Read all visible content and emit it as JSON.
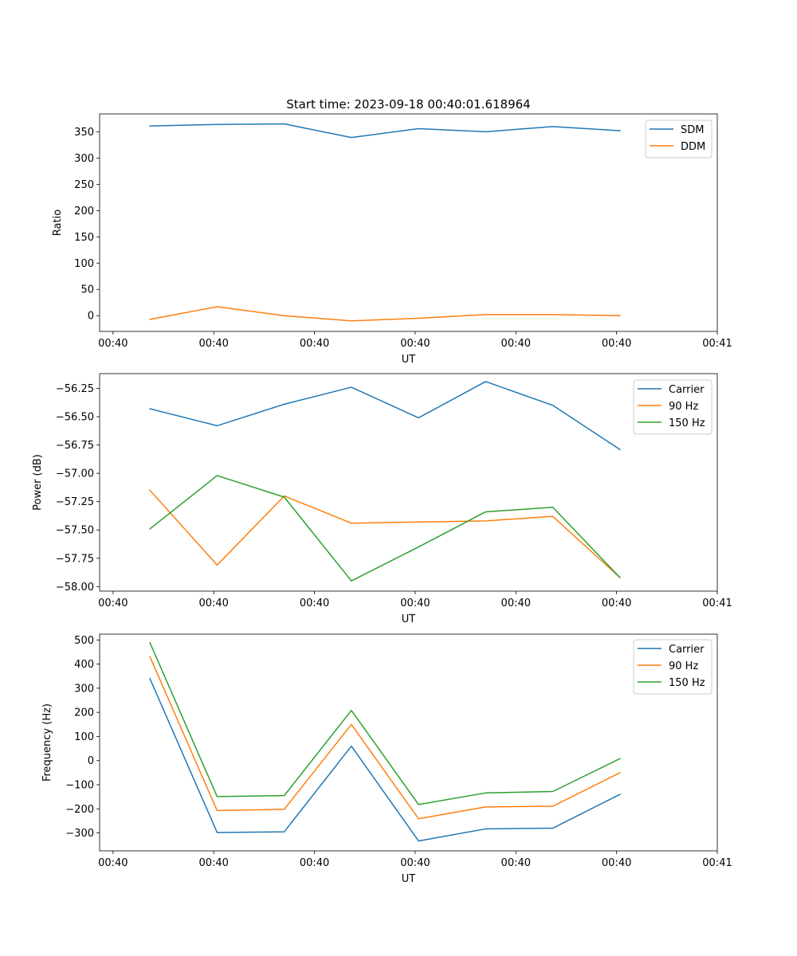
{
  "figure_title": "Start time: 2023-09-18 00:40:01.618964",
  "colors": {
    "blue": "#1f77b4",
    "orange": "#ff7f0e",
    "green": "#2ca02c",
    "axis": "#000000"
  },
  "chart_data": [
    {
      "type": "line",
      "id": "ratio",
      "title": "Start time: 2023-09-18 00:40:01.618964",
      "xlabel": "UT",
      "ylabel": "Ratio",
      "x": [
        1.0,
        2.0,
        3.0,
        4.0,
        5.0,
        6.0,
        7.0,
        8.0
      ],
      "xlim": [
        0.25,
        9.45
      ],
      "x_ticks": [
        0.45,
        1.95,
        3.45,
        4.95,
        6.45,
        7.95,
        9.45
      ],
      "x_tick_labels": [
        "00:40",
        "00:40",
        "00:40",
        "00:40",
        "00:40",
        "00:40",
        "00:41"
      ],
      "ylim": [
        -30,
        384
      ],
      "y_ticks": [
        0,
        50,
        100,
        150,
        200,
        250,
        300,
        350
      ],
      "y_tick_labels": [
        "0",
        "50",
        "100",
        "150",
        "200",
        "250",
        "300",
        "350"
      ],
      "legend": "top-right",
      "series": [
        {
          "name": "SDM",
          "color": "#1f77b4",
          "values": [
            361,
            364,
            365,
            339,
            356,
            350,
            360,
            352
          ]
        },
        {
          "name": "DDM",
          "color": "#ff7f0e",
          "values": [
            -7,
            17,
            0,
            -10,
            -5,
            2,
            2,
            0
          ]
        }
      ]
    },
    {
      "type": "line",
      "id": "power",
      "title": "",
      "xlabel": "UT",
      "ylabel": "Power (dB)",
      "x": [
        1.0,
        2.0,
        3.0,
        4.0,
        5.0,
        6.0,
        7.0,
        8.0
      ],
      "xlim": [
        0.25,
        9.45
      ],
      "x_ticks": [
        0.45,
        1.95,
        3.45,
        4.95,
        6.45,
        7.95,
        9.45
      ],
      "x_tick_labels": [
        "00:40",
        "00:40",
        "00:40",
        "00:40",
        "00:40",
        "00:40",
        "00:41"
      ],
      "ylim": [
        -58.04,
        -56.12
      ],
      "y_ticks": [
        -58.0,
        -57.75,
        -57.5,
        -57.25,
        -57.0,
        -56.75,
        -56.5,
        -56.25
      ],
      "y_tick_labels": [
        "−58.00",
        "−57.75",
        "−57.50",
        "−57.25",
        "−57.00",
        "−56.75",
        "−56.50",
        "−56.25"
      ],
      "legend": "top-right",
      "series": [
        {
          "name": "Carrier",
          "color": "#1f77b4",
          "values": [
            -56.43,
            -56.58,
            -56.39,
            -56.24,
            -56.51,
            -56.19,
            -56.4,
            -56.79
          ]
        },
        {
          "name": "90 Hz",
          "color": "#ff7f0e",
          "values": [
            -57.15,
            -57.81,
            -57.2,
            -57.44,
            -57.43,
            -57.42,
            -57.38,
            -57.92
          ]
        },
        {
          "name": "150 Hz",
          "color": "#2ca02c",
          "values": [
            -57.49,
            -57.02,
            -57.21,
            -57.95,
            -57.65,
            -57.34,
            -57.3,
            -57.92
          ]
        }
      ]
    },
    {
      "type": "line",
      "id": "frequency",
      "title": "",
      "xlabel": "UT",
      "ylabel": "Frequency (Hz)",
      "x": [
        1.0,
        2.0,
        3.0,
        4.0,
        5.0,
        6.0,
        7.0,
        8.0
      ],
      "xlim": [
        0.25,
        9.45
      ],
      "x_ticks": [
        0.45,
        1.95,
        3.45,
        4.95,
        6.45,
        7.95,
        9.45
      ],
      "x_tick_labels": [
        "00:40",
        "00:40",
        "00:40",
        "00:40",
        "00:40",
        "00:40",
        "00:41"
      ],
      "ylim": [
        -374,
        524
      ],
      "y_ticks": [
        -300,
        -200,
        -100,
        0,
        100,
        200,
        300,
        400,
        500
      ],
      "y_tick_labels": [
        "−300",
        "−200",
        "−100",
        "0",
        "100",
        "200",
        "300",
        "400",
        "500"
      ],
      "legend": "top-right",
      "series": [
        {
          "name": "Carrier",
          "color": "#1f77b4",
          "values": [
            339,
            -298,
            -295,
            60,
            -333,
            -283,
            -280,
            -140
          ]
        },
        {
          "name": "90 Hz",
          "color": "#ff7f0e",
          "values": [
            430,
            -207,
            -202,
            150,
            -241,
            -192,
            -189,
            -50
          ]
        },
        {
          "name": "150 Hz",
          "color": "#2ca02c",
          "values": [
            488,
            -149,
            -145,
            208,
            -182,
            -134,
            -128,
            8
          ]
        }
      ]
    }
  ]
}
